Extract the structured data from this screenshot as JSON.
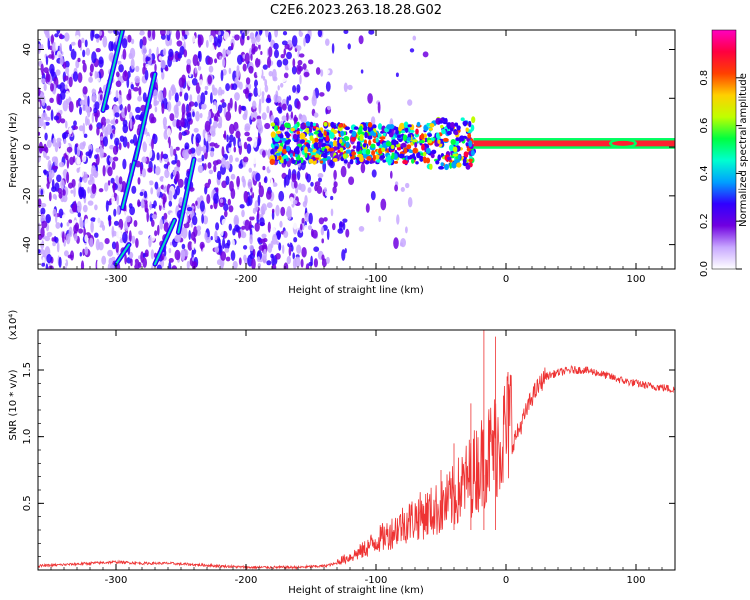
{
  "title": "C2E6.2023.263.18.28.G02",
  "chart_data": [
    {
      "type": "heatmap",
      "xlabel": "Height of straight line (km)",
      "ylabel": "Frequency (Hz)",
      "xlim": [
        -360,
        130
      ],
      "ylim": [
        -50,
        48
      ],
      "xticks": [
        -300,
        -200,
        -100,
        0,
        100
      ],
      "yticks": [
        -40,
        -20,
        0,
        20,
        40
      ],
      "colorbar": {
        "label": "Normalized spectral amplitude",
        "range": [
          0.0,
          1.0
        ],
        "ticks": [
          "0.0",
          "0.2",
          "0.4",
          "0.6",
          "0.8"
        ],
        "colormap": [
          "#ffffff",
          "#c8a8ff",
          "#7000e0",
          "#3000ff",
          "#00a0ff",
          "#00ffd0",
          "#00ff40",
          "#c0ff00",
          "#ffd000",
          "#ff4000",
          "#ff0040",
          "#ff00c0"
        ]
      },
      "features": {
        "noise_region_km": [
          -360,
          -120
        ],
        "band_center_hz": 1.5,
        "band_region_km": [
          -180,
          130
        ],
        "streaks": [
          {
            "x": [
              -310,
              -295
            ],
            "y": [
              15,
              48
            ]
          },
          {
            "x": [
              -300,
              -290
            ],
            "y": [
              -48,
              -40
            ]
          },
          {
            "x": [
              -295,
              -283
            ],
            "y": [
              -25,
              0
            ]
          },
          {
            "x": [
              -285,
              -270
            ],
            "y": [
              -5,
              30
            ]
          },
          {
            "x": [
              -270,
              -255
            ],
            "y": [
              -48,
              -30
            ]
          },
          {
            "x": [
              -252,
              -240
            ],
            "y": [
              -35,
              -5
            ]
          }
        ]
      }
    },
    {
      "type": "line",
      "xlabel": "Height of straight line (km)",
      "ylabel": "SNR (10 * v/v)",
      "multiplier": "(x10⁴)",
      "xlim": [
        -360,
        130
      ],
      "ylim": [
        0,
        1.8
      ],
      "xticks": [
        -300,
        -200,
        -100,
        0,
        100
      ],
      "yticks": [
        0.5,
        1.0,
        1.5
      ],
      "ytick_labels": [
        "0.5",
        "1.0",
        "1.5"
      ],
      "color": "#ee3333",
      "series": [
        {
          "x": [
            -360,
            -340,
            -320,
            -300,
            -280,
            -260,
            -240,
            -220,
            -200,
            -180,
            -160,
            -140,
            -130,
            -120,
            -110,
            -100,
            -90,
            -80,
            -70,
            -60,
            -50,
            -40,
            -30,
            -20,
            -15,
            -10,
            -5,
            0,
            10,
            20,
            30,
            40,
            50,
            60,
            70,
            80,
            90,
            100,
            110,
            120,
            130
          ],
          "values": [
            0.03,
            0.04,
            0.05,
            0.06,
            0.05,
            0.05,
            0.04,
            0.03,
            0.02,
            0.02,
            0.02,
            0.03,
            0.05,
            0.08,
            0.12,
            0.18,
            0.22,
            0.28,
            0.32,
            0.35,
            0.38,
            0.45,
            0.55,
            0.65,
            0.7,
            0.75,
            0.8,
            0.85,
            1.05,
            1.3,
            1.45,
            1.48,
            1.5,
            1.5,
            1.48,
            1.45,
            1.42,
            1.4,
            1.38,
            1.37,
            1.35
          ]
        }
      ]
    }
  ]
}
